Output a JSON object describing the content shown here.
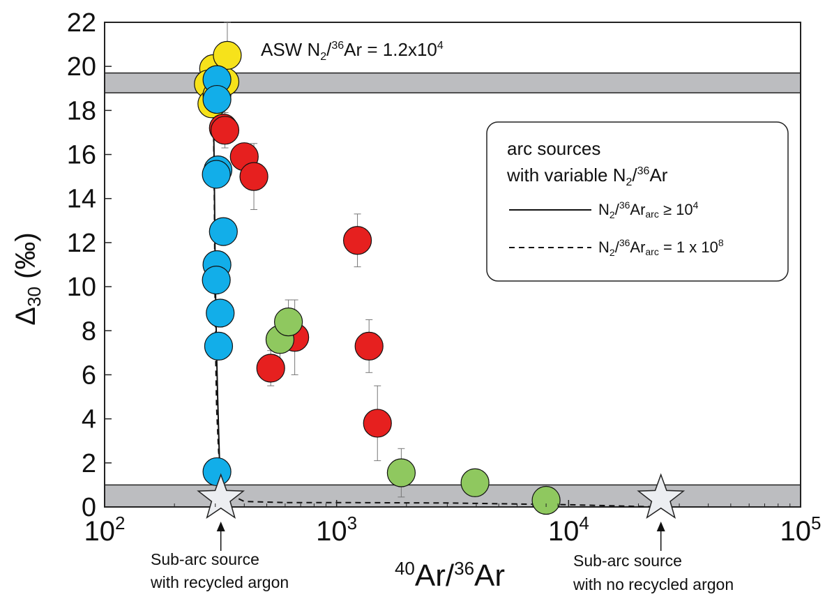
{
  "chart_data": {
    "type": "scatter",
    "xscale": "log",
    "xlim": [
      100,
      100000
    ],
    "ylim": [
      0,
      22
    ],
    "x_ticks": [
      {
        "value": 100,
        "base": "10",
        "exp": "2"
      },
      {
        "value": 1000,
        "base": "10",
        "exp": "3"
      },
      {
        "value": 10000,
        "base": "10",
        "exp": "4"
      },
      {
        "value": 100000,
        "base": "10",
        "exp": "5"
      }
    ],
    "y_ticks": [
      0,
      2,
      4,
      6,
      8,
      10,
      12,
      14,
      16,
      18,
      20,
      22
    ],
    "xlabel": {
      "sup1": "40",
      "t1": "Ar/",
      "sup2": "36",
      "t2": "Ar"
    },
    "ylabel": {
      "delta": "Δ",
      "sub": "30",
      "rest": " (‰)"
    },
    "bands": [
      {
        "y0": 18.8,
        "y1": 19.7,
        "color": "#bcbdc0"
      },
      {
        "y0": 0,
        "y1": 1.0,
        "color": "#bcbdc0"
      }
    ],
    "band_label": {
      "pre": "ASW N",
      "sub": "2",
      "mid": "/",
      "sup1": "36",
      "mid2": "Ar = 1.2x10",
      "sup2": "4"
    },
    "series": [
      {
        "color": "#f6e21b",
        "points": [
          {
            "x": 295,
            "y": 19.9,
            "err": 0.6
          },
          {
            "x": 280,
            "y": 19.2,
            "err": 0.8
          },
          {
            "x": 290,
            "y": 18.3,
            "err": 0.6
          },
          {
            "x": 305,
            "y": 18.7,
            "err": 0.8
          },
          {
            "x": 330,
            "y": 19.3,
            "err": 1.5
          },
          {
            "x": 338,
            "y": 20.5,
            "err": 1.5
          }
        ]
      },
      {
        "color": "#12aee9",
        "points": [
          {
            "x": 305,
            "y": 19.4,
            "err": 0.8
          },
          {
            "x": 305,
            "y": 18.5,
            "err": 0.8
          },
          {
            "x": 308,
            "y": 15.3,
            "err": 0.4
          },
          {
            "x": 303,
            "y": 15.1,
            "err": 0.3
          },
          {
            "x": 325,
            "y": 12.5,
            "err": 0.3
          },
          {
            "x": 305,
            "y": 11.0,
            "err": 0.3
          },
          {
            "x": 303,
            "y": 10.3,
            "err": 0.3
          },
          {
            "x": 315,
            "y": 8.8,
            "err": 0.3
          },
          {
            "x": 310,
            "y": 7.3,
            "err": 0.3
          },
          {
            "x": 305,
            "y": 1.6,
            "err": 0.2
          }
        ]
      },
      {
        "color": "#e6201f",
        "points": [
          {
            "x": 325,
            "y": 17.2,
            "err": 0.6
          },
          {
            "x": 330,
            "y": 17.1,
            "err": 0.8
          },
          {
            "x": 400,
            "y": 15.9,
            "err": 0.6
          },
          {
            "x": 440,
            "y": 15.0,
            "err": 1.5
          },
          {
            "x": 520,
            "y": 6.3,
            "err": 0.8
          },
          {
            "x": 660,
            "y": 7.7,
            "err": 1.7
          },
          {
            "x": 1230,
            "y": 12.1,
            "err": 1.2
          },
          {
            "x": 1380,
            "y": 7.3,
            "err": 1.2
          },
          {
            "x": 1500,
            "y": 3.8,
            "err": 1.7
          }
        ]
      },
      {
        "color": "#8fc85f",
        "points": [
          {
            "x": 570,
            "y": 7.6,
            "err": 1.0
          },
          {
            "x": 620,
            "y": 8.4,
            "err": 1.0
          },
          {
            "x": 1900,
            "y": 1.55,
            "err": 1.1
          },
          {
            "x": 3950,
            "y": 1.1,
            "err": 0.2
          },
          {
            "x": 8000,
            "y": 0.3,
            "err": 0.2
          }
        ]
      }
    ],
    "curves": [
      {
        "dash": "solid",
        "points": [
          [
            293,
            18.6
          ],
          [
            295,
            17.5
          ],
          [
            297,
            15
          ],
          [
            299,
            12
          ],
          [
            301,
            9.5
          ],
          [
            304,
            7
          ],
          [
            307,
            5
          ],
          [
            311,
            3
          ],
          [
            314,
            1.5
          ],
          [
            317,
            0.2
          ]
        ]
      },
      {
        "dash": "dashed",
        "points": [
          [
            293,
            18.6
          ],
          [
            295,
            17
          ],
          [
            297,
            14
          ],
          [
            299,
            10
          ],
          [
            301,
            7
          ],
          [
            304,
            4.5
          ],
          [
            310,
            2.5
          ],
          [
            320,
            1.2
          ],
          [
            340,
            0.6
          ],
          [
            400,
            0.25
          ],
          [
            600,
            0.2
          ],
          [
            1000,
            0.2
          ],
          [
            3000,
            0.18
          ],
          [
            10000,
            0.1
          ],
          [
            25000,
            0.0
          ]
        ]
      }
    ],
    "stars": [
      {
        "x": 317,
        "y": 0.2,
        "label_line1": "Sub-arc source",
        "label_line2": "with recycled argon"
      },
      {
        "x": 25000,
        "y": 0.2,
        "label_line1": "Sub-arc source",
        "label_line2": "with no recycled argon"
      }
    ],
    "legend": {
      "line1": "arc sources",
      "line2_pre": "with variable N",
      "line2_sub": "2",
      "line2_mid": "/",
      "line2_sup": "36",
      "line2_post": "Ar",
      "entries": [
        {
          "dash": "solid",
          "pre": "N",
          "sub": "2",
          "mid": "/",
          "sup": "36",
          "ar": "Ar",
          "subarc": "arc",
          "rel": " ≥ 10",
          "sup2": "4"
        },
        {
          "dash": "dashed",
          "pre": "N",
          "sub": "2",
          "mid": "/",
          "sup": "36",
          "ar": "Ar",
          "subarc": "arc",
          "rel": " = 1 x 10",
          "sup2": "8"
        }
      ]
    }
  }
}
